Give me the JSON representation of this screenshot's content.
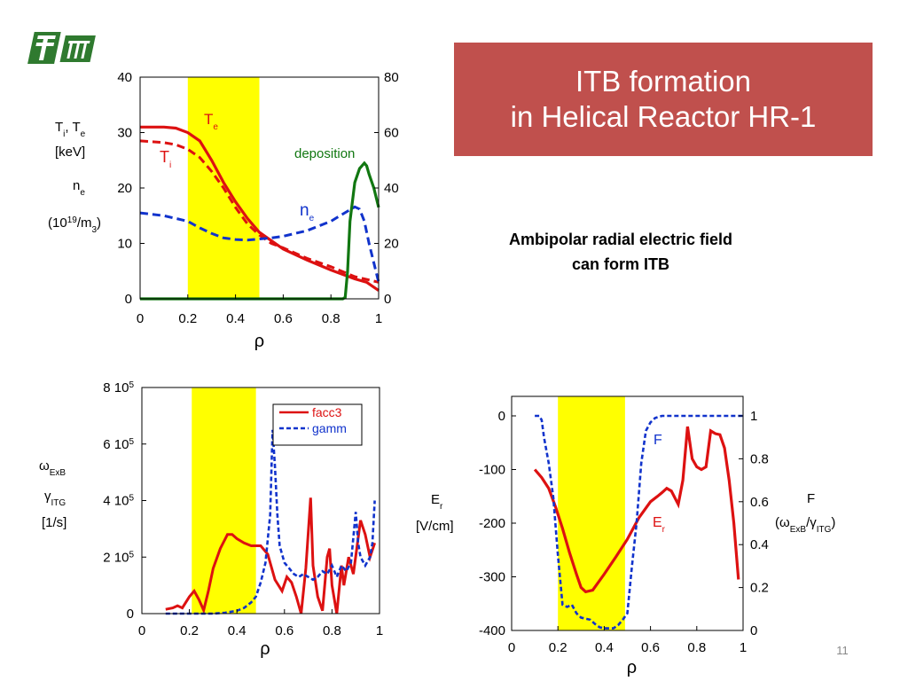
{
  "slide": {
    "title_line1": "ITB formation",
    "title_line2": "in Helical Reactor HR-1",
    "subtitle_line1": "Ambipolar radial electric field",
    "subtitle_line2": "can form ITB",
    "page_number": "11",
    "logo_icon": "nifs-logo-icon",
    "colors": {
      "title_bg": "#c0504d",
      "red": "#dd1111",
      "blue": "#1133cc",
      "green": "#117711",
      "highlight": "#ffff00"
    }
  },
  "chart_data": [
    {
      "id": "profiles",
      "type": "line",
      "xlabel": "ρ",
      "xlim": [
        0,
        1
      ],
      "x_ticks": [
        "0",
        "0.2",
        "0.4",
        "0.6",
        "0.8",
        "1"
      ],
      "ylim_left": [
        0,
        40
      ],
      "y_ticks_left": [
        "0",
        "10",
        "20",
        "30",
        "40"
      ],
      "ylim_right": [
        0,
        80
      ],
      "y_ticks_right": [
        "0",
        "20",
        "40",
        "60",
        "80"
      ],
      "ylabel_lines": [
        "Ti, Te",
        "[keV]",
        "ne",
        "(10^19/m3)"
      ],
      "highlight_band": [
        0.2,
        0.5
      ],
      "series": [
        {
          "name": "Te",
          "axis": "left",
          "style": "solid",
          "color": "#dd1111",
          "x": [
            0,
            0.1,
            0.15,
            0.2,
            0.25,
            0.3,
            0.35,
            0.4,
            0.45,
            0.5,
            0.55,
            0.6,
            0.7,
            0.8,
            0.9,
            0.95,
            1.0
          ],
          "y": [
            31,
            31,
            30.8,
            30,
            28.5,
            25,
            21,
            17.5,
            14.5,
            12,
            10.5,
            9,
            7,
            5.2,
            3.6,
            3,
            1.5
          ]
        },
        {
          "name": "Ti",
          "axis": "left",
          "style": "dashed",
          "color": "#dd1111",
          "x": [
            0,
            0.1,
            0.15,
            0.2,
            0.25,
            0.3,
            0.35,
            0.4,
            0.45,
            0.5,
            0.55,
            0.6,
            0.7,
            0.8,
            0.9,
            0.95,
            1.0
          ],
          "y": [
            28.5,
            28.2,
            27.8,
            27,
            25.5,
            23,
            20,
            16.5,
            13.5,
            11.5,
            10,
            9.2,
            7.3,
            5.8,
            4,
            3.5,
            3
          ]
        },
        {
          "name": "ne",
          "axis": "left",
          "style": "dashed",
          "color": "#1133cc",
          "x": [
            0,
            0.1,
            0.2,
            0.25,
            0.3,
            0.35,
            0.4,
            0.45,
            0.5,
            0.55,
            0.6,
            0.7,
            0.8,
            0.85,
            0.9,
            0.92,
            0.94,
            0.96,
            1.0
          ],
          "y": [
            15.5,
            15,
            14,
            12.8,
            11.8,
            11,
            10.7,
            10.6,
            10.8,
            11,
            11.3,
            12.3,
            14,
            15.3,
            16.6,
            16.2,
            14,
            10,
            3
          ]
        },
        {
          "name": "deposition",
          "axis": "right",
          "style": "solid",
          "color": "#117711",
          "x": [
            0,
            0.85,
            0.86,
            0.87,
            0.88,
            0.9,
            0.92,
            0.94,
            0.95,
            0.96,
            0.98,
            1.0
          ],
          "y": [
            0,
            0,
            0.5,
            10,
            28,
            42,
            47,
            49,
            48,
            45,
            40,
            33
          ]
        }
      ],
      "annotations": [
        {
          "text": "Te",
          "sub": "e",
          "base": "T",
          "color": "#dd1111"
        },
        {
          "text": "Ti",
          "sub": "i",
          "base": "T",
          "color": "#dd1111"
        },
        {
          "text": "deposition",
          "color": "#117711"
        },
        {
          "text": "ne",
          "sub": "e",
          "base": "n",
          "color": "#1133cc"
        }
      ]
    },
    {
      "id": "growth",
      "type": "line",
      "xlabel": "ρ",
      "xlim": [
        0,
        1
      ],
      "x_ticks": [
        "0",
        "0.2",
        "0.4",
        "0.6",
        "0.8",
        "1"
      ],
      "ylim": [
        0,
        800000
      ],
      "y_ticks": [
        "0",
        "2 10^5",
        "4 10^5",
        "6 10^5",
        "8 10^5"
      ],
      "ylabel_lines": [
        "ωExB",
        "γITG",
        "[1/s]"
      ],
      "legend_placement": "top-right",
      "highlight_band": [
        0.21,
        0.48
      ],
      "series": [
        {
          "name": "facc3",
          "style": "solid",
          "color": "#dd1111",
          "x": [
            0.1,
            0.13,
            0.15,
            0.17,
            0.2,
            0.22,
            0.24,
            0.26,
            0.28,
            0.3,
            0.33,
            0.36,
            0.38,
            0.4,
            0.43,
            0.46,
            0.48,
            0.5,
            0.53,
            0.56,
            0.59,
            0.61,
            0.63,
            0.65,
            0.67,
            0.69,
            0.71,
            0.72,
            0.74,
            0.76,
            0.78,
            0.79,
            0.8,
            0.82,
            0.84,
            0.85,
            0.87,
            0.89,
            0.92,
            0.94,
            0.96,
            0.98
          ],
          "y": [
            15000,
            20000,
            28000,
            20000,
            60000,
            80000,
            50000,
            12000,
            80000,
            160000,
            230000,
            280000,
            280000,
            265000,
            250000,
            240000,
            240000,
            240000,
            210000,
            120000,
            80000,
            130000,
            110000,
            60000,
            0,
            160000,
            410000,
            170000,
            60000,
            10000,
            200000,
            230000,
            100000,
            0,
            170000,
            100000,
            200000,
            140000,
            330000,
            280000,
            200000,
            250000
          ]
        },
        {
          "name": "gamm",
          "style": "dashed",
          "color": "#1133cc",
          "x": [
            0.1,
            0.15,
            0.2,
            0.25,
            0.3,
            0.35,
            0.4,
            0.43,
            0.46,
            0.48,
            0.5,
            0.52,
            0.54,
            0.55,
            0.56,
            0.57,
            0.58,
            0.6,
            0.62,
            0.64,
            0.66,
            0.68,
            0.7,
            0.72,
            0.74,
            0.76,
            0.78,
            0.8,
            0.82,
            0.84,
            0.86,
            0.88,
            0.9,
            0.91,
            0.92,
            0.94,
            0.96,
            0.97,
            0.98
          ],
          "y": [
            0,
            0,
            0,
            0,
            0,
            3000,
            10000,
            20000,
            40000,
            60000,
            110000,
            180000,
            350000,
            650000,
            520000,
            350000,
            240000,
            180000,
            160000,
            140000,
            130000,
            140000,
            130000,
            120000,
            130000,
            150000,
            140000,
            170000,
            130000,
            170000,
            150000,
            180000,
            360000,
            250000,
            200000,
            170000,
            200000,
            250000,
            400000
          ]
        }
      ]
    },
    {
      "id": "efield",
      "type": "line",
      "xlabel": "ρ",
      "xlim": [
        0,
        1
      ],
      "x_ticks": [
        "0",
        "0.2",
        "0.4",
        "0.6",
        "0.8",
        "1"
      ],
      "ylim_left": [
        -400,
        0
      ],
      "y_ticks_left": [
        "-400",
        "-300",
        "-200",
        "-100",
        "0"
      ],
      "ylim_right": [
        0,
        1
      ],
      "y_ticks_right": [
        "0",
        "0.2",
        "0.4",
        "0.6",
        "0.8",
        "1"
      ],
      "ylabel_lines": [
        "Er",
        "[V/cm]"
      ],
      "ylabel_right_lines": [
        "F",
        "(ωExB/γITG)"
      ],
      "highlight_band": [
        0.2,
        0.49
      ],
      "series": [
        {
          "name": "Er",
          "axis": "left",
          "style": "solid",
          "color": "#dd1111",
          "x": [
            0.1,
            0.13,
            0.16,
            0.19,
            0.22,
            0.25,
            0.28,
            0.3,
            0.32,
            0.35,
            0.4,
            0.45,
            0.5,
            0.55,
            0.6,
            0.63,
            0.65,
            0.67,
            0.69,
            0.72,
            0.74,
            0.76,
            0.78,
            0.8,
            0.82,
            0.84,
            0.86,
            0.88,
            0.9,
            0.92,
            0.94,
            0.96,
            0.98
          ],
          "y": [
            -100,
            -115,
            -135,
            -170,
            -210,
            -255,
            -295,
            -320,
            -328,
            -325,
            -295,
            -263,
            -230,
            -190,
            -160,
            -150,
            -143,
            -135,
            -140,
            -165,
            -120,
            -20,
            -80,
            -95,
            -100,
            -95,
            -28,
            -33,
            -35,
            -60,
            -120,
            -200,
            -305
          ]
        },
        {
          "name": "F",
          "axis": "right",
          "style": "dashed",
          "color": "#1133cc",
          "x": [
            0.1,
            0.12,
            0.13,
            0.14,
            0.16,
            0.18,
            0.2,
            0.22,
            0.24,
            0.26,
            0.28,
            0.3,
            0.32,
            0.34,
            0.36,
            0.38,
            0.4,
            0.42,
            0.44,
            0.46,
            0.48,
            0.5,
            0.52,
            0.54,
            0.56,
            0.58,
            0.6,
            0.62,
            0.65,
            0.7,
            0.8,
            0.9,
            1.0
          ],
          "y": [
            1,
            1,
            0.98,
            0.9,
            0.78,
            0.62,
            0.35,
            0.12,
            0.11,
            0.12,
            0.08,
            0.06,
            0.055,
            0.05,
            0.03,
            0.015,
            0.01,
            0.01,
            0.01,
            0.025,
            0.05,
            0.08,
            0.3,
            0.5,
            0.78,
            0.93,
            0.97,
            0.99,
            1,
            1,
            1,
            1,
            1
          ]
        }
      ],
      "annotations": [
        {
          "text": "F",
          "color": "#1133cc"
        },
        {
          "text": "Er",
          "sub": "r",
          "base": "E",
          "color": "#dd1111"
        }
      ]
    }
  ]
}
